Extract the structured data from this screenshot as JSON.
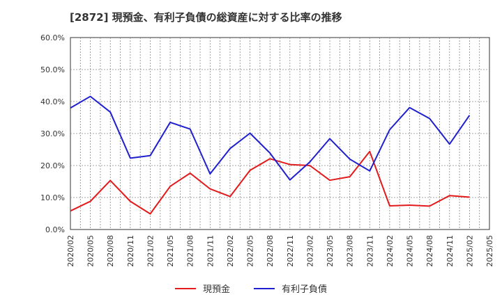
{
  "chart_data": {
    "type": "line",
    "title": "[2872]  現預金、有利子負債の総資産に対する比率の推移",
    "xlabel": "",
    "ylabel": "",
    "ylim": [
      0,
      60
    ],
    "grid": true,
    "legend_position": "bottom-center",
    "y_ticks": [
      "0.0%",
      "10.0%",
      "20.0%",
      "30.0%",
      "40.0%",
      "50.0%",
      "60.0%"
    ],
    "x": [
      "2020/02",
      "2020/05",
      "2020/08",
      "2020/11",
      "2021/02",
      "2021/05",
      "2021/08",
      "2021/11",
      "2022/02",
      "2022/05",
      "2022/08",
      "2022/11",
      "2023/02",
      "2023/05",
      "2023/08",
      "2023/11",
      "2024/02",
      "2024/05",
      "2024/08",
      "2024/11",
      "2025/02",
      "2025/05"
    ],
    "series": [
      {
        "name": "現預金",
        "color": "#e31a1c",
        "values": [
          5.8,
          8.8,
          15.3,
          8.8,
          4.9,
          13.5,
          17.6,
          12.7,
          10.3,
          18.5,
          22.1,
          20.3,
          20.0,
          15.4,
          16.5,
          24.4,
          7.4,
          7.6,
          7.3,
          10.6,
          10.1,
          null
        ]
      },
      {
        "name": "有利子負債",
        "color": "#1f1fcf",
        "values": [
          38.0,
          41.6,
          36.7,
          22.3,
          23.1,
          33.5,
          31.4,
          17.4,
          25.3,
          30.1,
          23.9,
          15.5,
          21.1,
          28.4,
          22.0,
          18.3,
          31.2,
          38.1,
          34.7,
          26.7,
          35.7,
          null
        ]
      }
    ]
  }
}
